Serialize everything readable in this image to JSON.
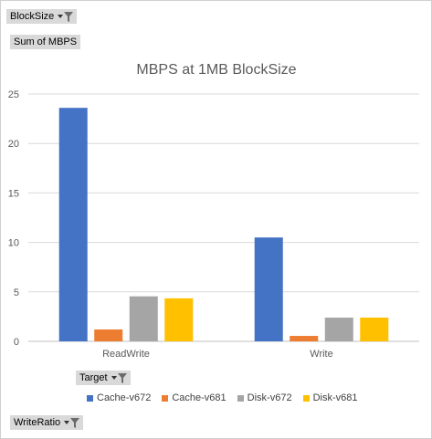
{
  "pivot": {
    "filter_field": "BlockSize",
    "value_field": "Sum of MBPS",
    "legend_field": "Target",
    "axis_field": "WriteRatio"
  },
  "icons": {
    "dropdown": "chevron-down-icon",
    "filter": "filter-funnel-icon"
  },
  "chart_data": {
    "type": "bar",
    "title": "MBPS at 1MB BlockSize",
    "categories": [
      "ReadWrite",
      "Write"
    ],
    "series": [
      {
        "name": "Cache-v672",
        "color": "#4472C4",
        "values": [
          23.6,
          10.5
        ]
      },
      {
        "name": "Cache-v681",
        "color": "#ED7D31",
        "values": [
          1.2,
          0.55
        ]
      },
      {
        "name": "Disk-v672",
        "color": "#A5A5A5",
        "values": [
          4.55,
          2.4
        ]
      },
      {
        "name": "Disk-v681",
        "color": "#FFC000",
        "values": [
          4.35,
          2.4
        ]
      }
    ],
    "ylim": [
      0,
      25
    ],
    "yticks": [
      "0",
      "5",
      "10",
      "15",
      "20",
      "25"
    ],
    "xlabel": "",
    "ylabel": "",
    "grid": true,
    "legend_position": "bottom"
  }
}
